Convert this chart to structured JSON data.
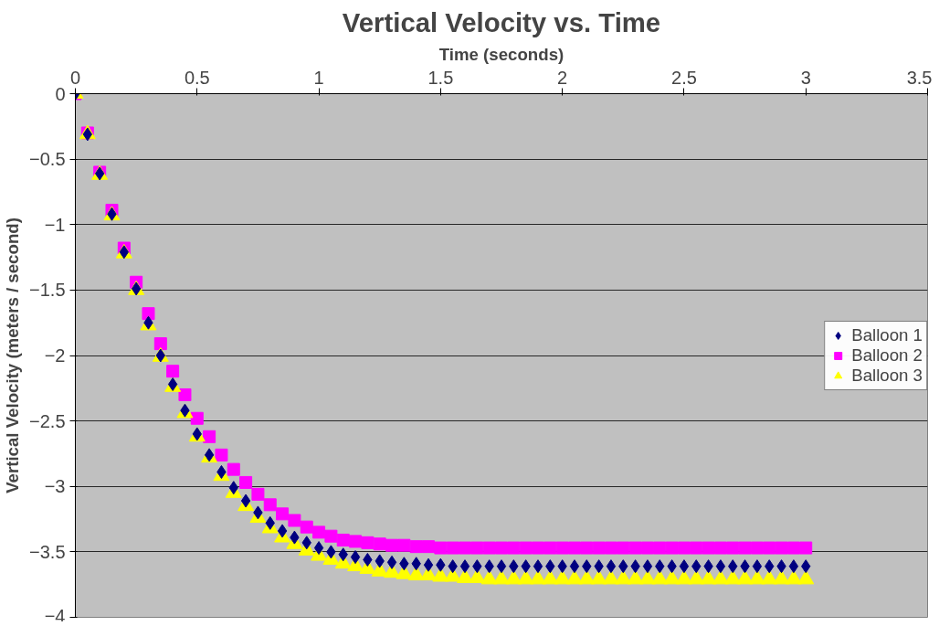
{
  "chart_data": {
    "type": "scatter",
    "title": "Vertical Velocity vs. Time",
    "xlabel": "Time (seconds)",
    "ylabel": "Vertical Velocity (meters / second)",
    "x": [
      0,
      0.05,
      0.1,
      0.15,
      0.2,
      0.25,
      0.3,
      0.35,
      0.4,
      0.45,
      0.5,
      0.55,
      0.6,
      0.65,
      0.7,
      0.75,
      0.8,
      0.85,
      0.9,
      0.95,
      1.0,
      1.05,
      1.1,
      1.15,
      1.2,
      1.25,
      1.3,
      1.35,
      1.4,
      1.45,
      1.5,
      1.55,
      1.6,
      1.65,
      1.7,
      1.75,
      1.8,
      1.85,
      1.9,
      1.95,
      2.0,
      2.05,
      2.1,
      2.15,
      2.2,
      2.25,
      2.3,
      2.35,
      2.4,
      2.45,
      2.5,
      2.55,
      2.6,
      2.65,
      2.7,
      2.75,
      2.8,
      2.85,
      2.9,
      2.95,
      3.0
    ],
    "series": [
      {
        "name": "Balloon 1",
        "color": "#000080",
        "marker": "diamond",
        "values": [
          0,
          -0.31,
          -0.61,
          -0.92,
          -1.21,
          -1.49,
          -1.75,
          -2.0,
          -2.22,
          -2.42,
          -2.6,
          -2.76,
          -2.89,
          -3.01,
          -3.11,
          -3.2,
          -3.28,
          -3.34,
          -3.39,
          -3.43,
          -3.47,
          -3.5,
          -3.52,
          -3.54,
          -3.56,
          -3.57,
          -3.58,
          -3.59,
          -3.59,
          -3.6,
          -3.6,
          -3.61,
          -3.61,
          -3.61,
          -3.61,
          -3.61,
          -3.61,
          -3.61,
          -3.61,
          -3.61,
          -3.61,
          -3.61,
          -3.61,
          -3.61,
          -3.61,
          -3.61,
          -3.61,
          -3.61,
          -3.61,
          -3.61,
          -3.61,
          -3.61,
          -3.61,
          -3.61,
          -3.61,
          -3.61,
          -3.61,
          -3.61,
          -3.61,
          -3.61,
          -3.61
        ]
      },
      {
        "name": "Balloon 2",
        "color": "#ff00ff",
        "marker": "square",
        "values": [
          0,
          -0.3,
          -0.6,
          -0.89,
          -1.18,
          -1.44,
          -1.68,
          -1.91,
          -2.12,
          -2.3,
          -2.48,
          -2.62,
          -2.76,
          -2.87,
          -2.97,
          -3.06,
          -3.14,
          -3.21,
          -3.26,
          -3.31,
          -3.35,
          -3.38,
          -3.41,
          -3.42,
          -3.43,
          -3.44,
          -3.45,
          -3.45,
          -3.46,
          -3.46,
          -3.47,
          -3.47,
          -3.47,
          -3.47,
          -3.47,
          -3.47,
          -3.47,
          -3.47,
          -3.47,
          -3.47,
          -3.47,
          -3.47,
          -3.47,
          -3.47,
          -3.47,
          -3.47,
          -3.47,
          -3.47,
          -3.47,
          -3.47,
          -3.47,
          -3.47,
          -3.47,
          -3.47,
          -3.47,
          -3.47,
          -3.47,
          -3.47,
          -3.47,
          -3.47,
          -3.47
        ]
      },
      {
        "name": "Balloon 3",
        "color": "#ffff00",
        "marker": "triangle",
        "values": [
          0,
          -0.31,
          -0.62,
          -0.93,
          -1.22,
          -1.5,
          -1.77,
          -2.01,
          -2.24,
          -2.44,
          -2.62,
          -2.78,
          -2.92,
          -3.05,
          -3.15,
          -3.24,
          -3.32,
          -3.39,
          -3.44,
          -3.49,
          -3.53,
          -3.56,
          -3.59,
          -3.61,
          -3.63,
          -3.65,
          -3.66,
          -3.67,
          -3.68,
          -3.68,
          -3.69,
          -3.69,
          -3.7,
          -3.7,
          -3.71,
          -3.71,
          -3.71,
          -3.71,
          -3.71,
          -3.71,
          -3.71,
          -3.71,
          -3.71,
          -3.71,
          -3.71,
          -3.71,
          -3.71,
          -3.71,
          -3.71,
          -3.71,
          -3.71,
          -3.71,
          -3.71,
          -3.71,
          -3.71,
          -3.71,
          -3.71,
          -3.71,
          -3.71,
          -3.71,
          -3.71
        ]
      }
    ],
    "xlim": [
      0,
      3.5
    ],
    "xticks": [
      0,
      0.5,
      1,
      1.5,
      2,
      2.5,
      3,
      3.5
    ],
    "ylim": [
      -4,
      0
    ],
    "yticks": [
      0,
      -0.5,
      -1,
      -1.5,
      -2,
      -2.5,
      -3,
      -3.5,
      -4
    ],
    "grid": "y",
    "legend": "right"
  }
}
